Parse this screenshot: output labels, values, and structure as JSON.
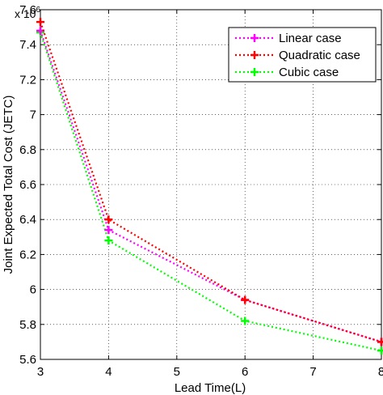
{
  "chart_data": {
    "type": "line",
    "xlabel": "Lead Time(L)",
    "ylabel": "Joint Expected Total Cost (JETC)",
    "y_multiplier": {
      "base": "x 10",
      "exponent": "6"
    },
    "xlim": [
      3,
      8
    ],
    "ylim": [
      5.6,
      7.6
    ],
    "xticks": [
      "3",
      "4",
      "5",
      "6",
      "7",
      "8"
    ],
    "yticks": [
      "5.6",
      "5.8",
      "6",
      "6.2",
      "6.4",
      "6.6",
      "6.8",
      "7",
      "7.2",
      "7.4",
      "7.6"
    ],
    "grid": true,
    "legend_position": "top-right",
    "series": [
      {
        "name": "Linear case",
        "color": "#ff00ff",
        "marker": "plus",
        "line": "dotted",
        "x": [
          3,
          4,
          6,
          8
        ],
        "y": [
          7.48,
          6.34,
          5.94,
          5.7
        ]
      },
      {
        "name": "Quadratic case",
        "color": "#ff0000",
        "marker": "plus",
        "line": "dotted",
        "x": [
          3,
          4,
          6,
          8
        ],
        "y": [
          7.53,
          6.4,
          5.94,
          5.7
        ]
      },
      {
        "name": "Cubic case",
        "color": "#00ff00",
        "marker": "plus",
        "line": "dotted",
        "x": [
          3,
          4,
          6,
          8
        ],
        "y": [
          7.47,
          6.28,
          5.82,
          5.65
        ]
      }
    ]
  }
}
